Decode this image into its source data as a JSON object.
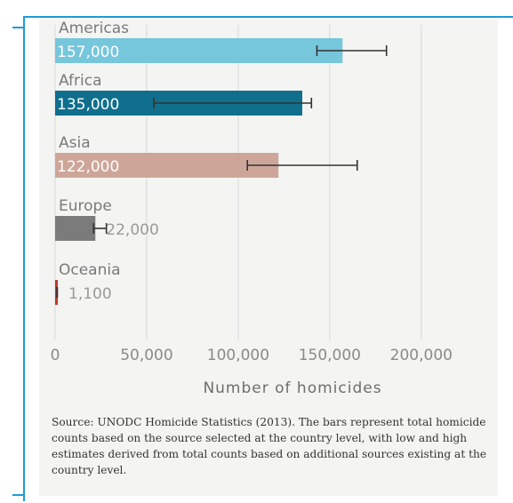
{
  "chart_data": {
    "type": "bar",
    "orientation": "horizontal",
    "categories": [
      "Americas",
      "Africa",
      "Asia",
      "Europe",
      "Oceania"
    ],
    "values": [
      157000,
      135000,
      122000,
      22000,
      1100
    ],
    "value_labels": [
      "157,000",
      "135,000",
      "122,000",
      "22,000",
      "1,100"
    ],
    "error_low": [
      143000,
      54000,
      105000,
      21000,
      1000
    ],
    "error_high": [
      181000,
      140000,
      165000,
      28000,
      1200
    ],
    "colors": [
      "#76c6dc",
      "#0f6f8d",
      "#cda699",
      "#7b7b7b",
      "#c0392b"
    ],
    "xlabel": "Number of homicides",
    "xlim": [
      0,
      220000
    ],
    "xticks": [
      0,
      50000,
      100000,
      150000,
      200000
    ],
    "xtick_labels": [
      "0",
      "50,000",
      "100,000",
      "150,000",
      "200,000"
    ],
    "grid": "vertical"
  },
  "source_note": "Source: UNODC Homicide Statistics (2013). The bars represent total homicide counts based on the source selected at the country level, with low and high estimates derived from total counts based on additional sources existing at the country level."
}
